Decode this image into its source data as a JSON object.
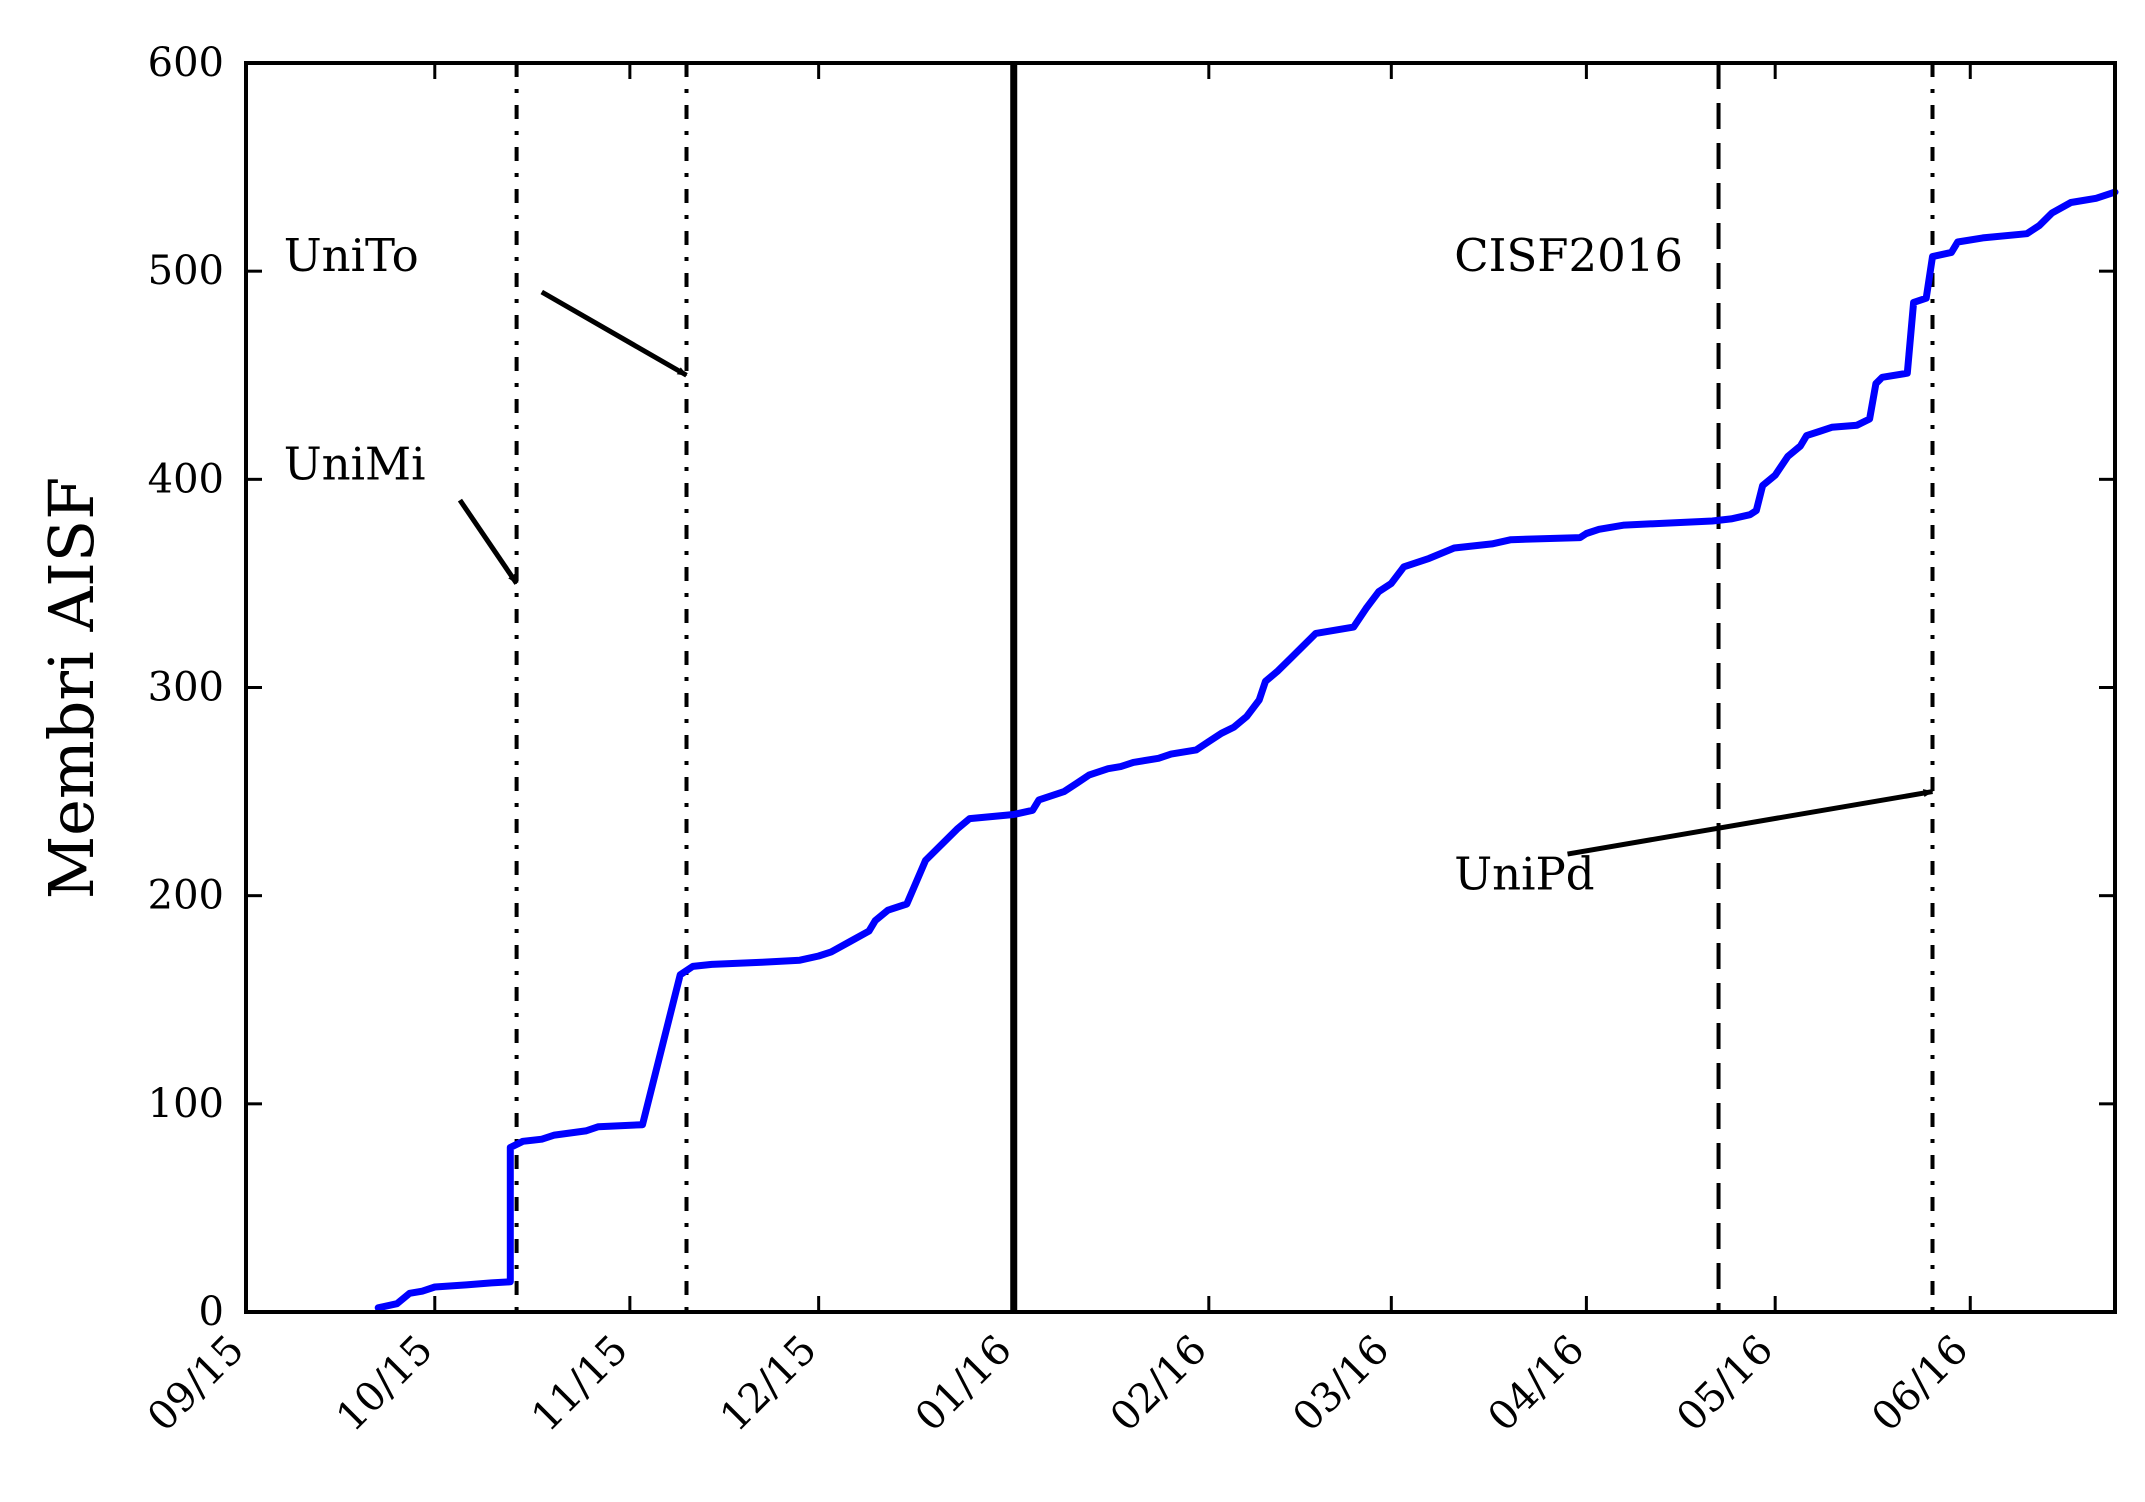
{
  "chart_data": {
    "type": "line",
    "title": "",
    "xlabel": "",
    "ylabel": "Membri AISF",
    "ylim": [
      0,
      600
    ],
    "xlim": [
      "2015-09-01",
      "2016-06-24"
    ],
    "yticks": [
      0,
      100,
      200,
      300,
      400,
      500,
      600
    ],
    "xticks": [
      {
        "label": "09/15",
        "date": "2015-09-01"
      },
      {
        "label": "10/15",
        "date": "2015-10-01"
      },
      {
        "label": "11/15",
        "date": "2015-11-01"
      },
      {
        "label": "12/15",
        "date": "2015-12-01"
      },
      {
        "label": "01/16",
        "date": "2016-01-01"
      },
      {
        "label": "02/16",
        "date": "2016-02-01"
      },
      {
        "label": "03/16",
        "date": "2016-03-01"
      },
      {
        "label": "04/16",
        "date": "2016-04-01"
      },
      {
        "label": "05/16",
        "date": "2016-05-01"
      },
      {
        "label": "06/16",
        "date": "2016-06-01"
      }
    ],
    "grid": false,
    "colors": {
      "series": "#0000ff",
      "axes": "#000000"
    },
    "series": [
      {
        "name": "",
        "points": [
          [
            "2015-09-22",
            2
          ],
          [
            "2015-09-25",
            4
          ],
          [
            "2015-09-27",
            9
          ],
          [
            "2015-09-29",
            10
          ],
          [
            "2015-10-01",
            12
          ],
          [
            "2015-10-06",
            13
          ],
          [
            "2015-10-10",
            14
          ],
          [
            "2015-10-13",
            14.5
          ],
          [
            "2015-10-13",
            79
          ],
          [
            "2015-10-15",
            82
          ],
          [
            "2015-10-18",
            83
          ],
          [
            "2015-10-20",
            85
          ],
          [
            "2015-10-25",
            87
          ],
          [
            "2015-10-27",
            89
          ],
          [
            "2015-11-03",
            90
          ],
          [
            "2015-11-09",
            162
          ],
          [
            "2015-11-11",
            166
          ],
          [
            "2015-11-14",
            167
          ],
          [
            "2015-11-22",
            168
          ],
          [
            "2015-11-28",
            169
          ],
          [
            "2015-12-01",
            171
          ],
          [
            "2015-12-03",
            173
          ],
          [
            "2015-12-06",
            178
          ],
          [
            "2015-12-09",
            183
          ],
          [
            "2015-12-10",
            188
          ],
          [
            "2015-12-12",
            193
          ],
          [
            "2015-12-15",
            196
          ],
          [
            "2015-12-18",
            217
          ],
          [
            "2015-12-23",
            232
          ],
          [
            "2015-12-25",
            237
          ],
          [
            "2016-01-01",
            239
          ],
          [
            "2016-01-04",
            241
          ],
          [
            "2016-01-05",
            246
          ],
          [
            "2016-01-09",
            250
          ],
          [
            "2016-01-11",
            254
          ],
          [
            "2016-01-13",
            258
          ],
          [
            "2016-01-16",
            261
          ],
          [
            "2016-01-18",
            262
          ],
          [
            "2016-01-20",
            264
          ],
          [
            "2016-01-24",
            266
          ],
          [
            "2016-01-26",
            268
          ],
          [
            "2016-01-30",
            270
          ],
          [
            "2016-02-01",
            274
          ],
          [
            "2016-02-03",
            278
          ],
          [
            "2016-02-05",
            281
          ],
          [
            "2016-02-07",
            286
          ],
          [
            "2016-02-09",
            294
          ],
          [
            "2016-02-10",
            303
          ],
          [
            "2016-02-12",
            308
          ],
          [
            "2016-02-14",
            314
          ],
          [
            "2016-02-16",
            320
          ],
          [
            "2016-02-18",
            326
          ],
          [
            "2016-02-24",
            329
          ],
          [
            "2016-02-26",
            338
          ],
          [
            "2016-02-28",
            346
          ],
          [
            "2016-03-01",
            350
          ],
          [
            "2016-03-03",
            358
          ],
          [
            "2016-03-07",
            362
          ],
          [
            "2016-03-11",
            367
          ],
          [
            "2016-03-17",
            369
          ],
          [
            "2016-03-20",
            371
          ],
          [
            "2016-03-31",
            372
          ],
          [
            "2016-04-01",
            374
          ],
          [
            "2016-04-03",
            376
          ],
          [
            "2016-04-07",
            378
          ],
          [
            "2016-04-21",
            380
          ],
          [
            "2016-04-24",
            381
          ],
          [
            "2016-04-27",
            383
          ],
          [
            "2016-04-28",
            385
          ],
          [
            "2016-04-29",
            397
          ],
          [
            "2016-05-01",
            402
          ],
          [
            "2016-05-03",
            411
          ],
          [
            "2016-05-05",
            416
          ],
          [
            "2016-05-06",
            421
          ],
          [
            "2016-05-08",
            423
          ],
          [
            "2016-05-10",
            425
          ],
          [
            "2016-05-14",
            426
          ],
          [
            "2016-05-16",
            429
          ],
          [
            "2016-05-17",
            446
          ],
          [
            "2016-05-18",
            449
          ],
          [
            "2016-05-22",
            451
          ],
          [
            "2016-05-23",
            485
          ],
          [
            "2016-05-25",
            487
          ],
          [
            "2016-05-26",
            507
          ],
          [
            "2016-05-29",
            509
          ],
          [
            "2016-05-30",
            514
          ],
          [
            "2016-06-03",
            516
          ],
          [
            "2016-06-10",
            518
          ],
          [
            "2016-06-12",
            522
          ],
          [
            "2016-06-14",
            528
          ],
          [
            "2016-06-17",
            533
          ],
          [
            "2016-06-21",
            535
          ],
          [
            "2016-06-24",
            538
          ]
        ]
      }
    ],
    "vlines": [
      {
        "date": "2015-10-14",
        "style": "dashdot",
        "width": "thin"
      },
      {
        "date": "2015-11-10",
        "style": "dashdot",
        "width": "thin"
      },
      {
        "date": "2016-01-01",
        "style": "solid",
        "width": "thick"
      },
      {
        "date": "2016-04-22",
        "style": "dashed",
        "width": "thin"
      },
      {
        "date": "2016-05-26",
        "style": "dashdot",
        "width": "thin"
      }
    ],
    "annotations": [
      {
        "text": "UniTo",
        "text_at": [
          "2015-09-07",
          500
        ],
        "arrow_to": [
          "2015-11-10",
          450
        ],
        "arrow_from": [
          "2015-10-18",
          490
        ]
      },
      {
        "text": "UniMi",
        "text_at": [
          "2015-09-07",
          400
        ],
        "arrow_to": [
          "2015-10-14",
          350
        ],
        "arrow_from": [
          "2015-10-05",
          390
        ]
      },
      {
        "text": "CISF2016",
        "text_at": [
          "2016-03-11",
          500
        ],
        "arrow_to": null,
        "arrow_from": null
      },
      {
        "text": "UniPd",
        "text_at": [
          "2016-03-11",
          203
        ],
        "arrow_to": [
          "2016-05-26",
          250
        ],
        "arrow_from": [
          "2016-03-29",
          220
        ]
      }
    ]
  }
}
